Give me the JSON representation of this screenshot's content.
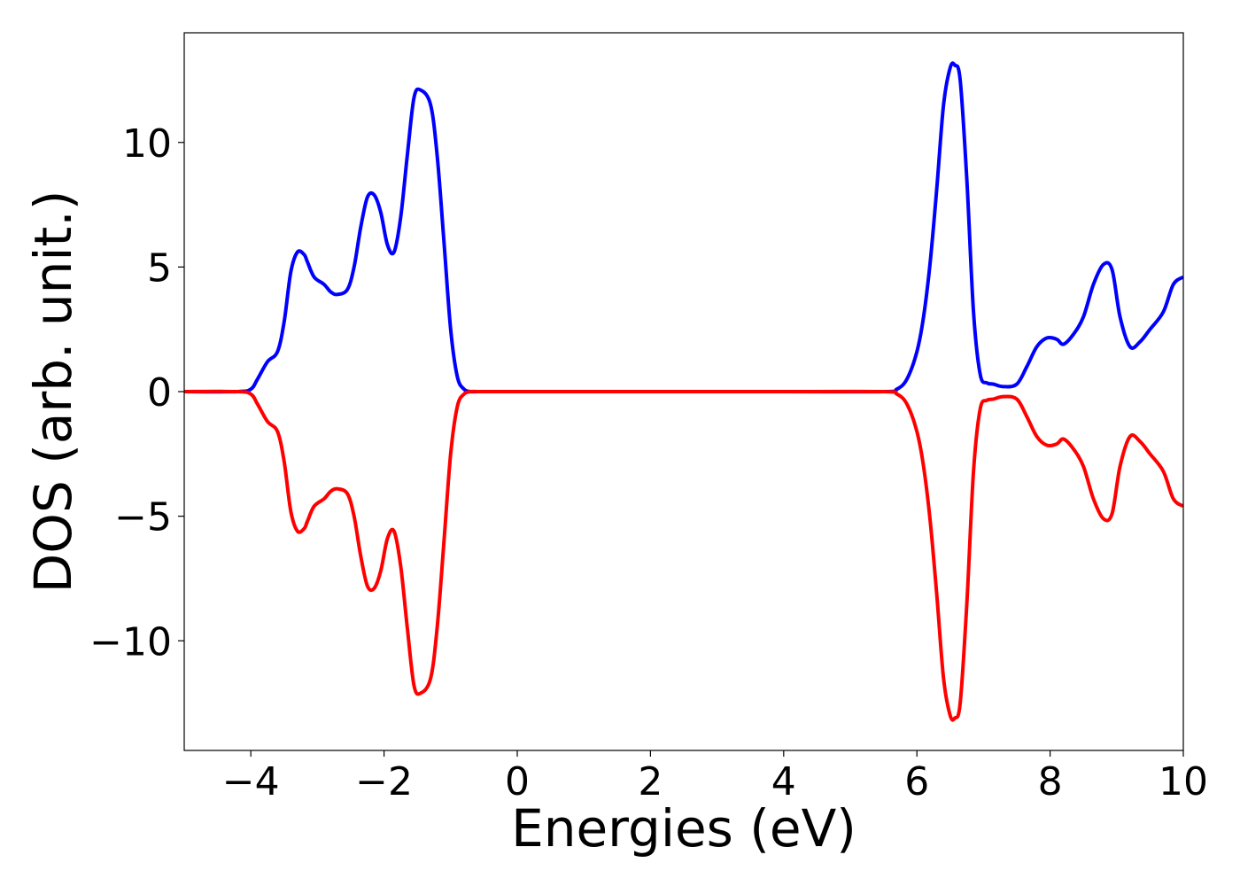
{
  "chart_data": {
    "type": "line",
    "title": "",
    "xlabel": "Energies (eV)",
    "ylabel": "DOS (arb. unit.)",
    "xlim": [
      -5,
      10
    ],
    "ylim": [
      -14.4,
      14.4
    ],
    "xticks": [
      -4,
      -2,
      0,
      2,
      4,
      6,
      8,
      10
    ],
    "xtick_labels": [
      "−4",
      "−2",
      "0",
      "2",
      "4",
      "6",
      "8",
      "10"
    ],
    "yticks": [
      10,
      5,
      0,
      -5,
      -10
    ],
    "ytick_labels": [
      "10",
      "5",
      "0",
      "−5",
      "−10"
    ],
    "grid": false,
    "legend": false,
    "series": [
      {
        "color": "#0000ff",
        "x": [
          -5,
          -4.2,
          -4.0,
          -3.9,
          -3.75,
          -3.6,
          -3.5,
          -3.4,
          -3.3,
          -3.2,
          -3.15,
          -3.05,
          -2.9,
          -2.8,
          -2.7,
          -2.55,
          -2.45,
          -2.35,
          -2.25,
          -2.15,
          -2.05,
          -1.95,
          -1.85,
          -1.75,
          -1.65,
          -1.55,
          -1.45,
          -1.3,
          -1.2,
          -1.1,
          -1.0,
          -0.9,
          -0.8,
          -0.7,
          -0.6,
          -0.5,
          -0.4,
          0,
          4,
          5.5,
          5.7,
          5.85,
          6.0,
          6.1,
          6.2,
          6.3,
          6.4,
          6.5,
          6.57,
          6.65,
          6.75,
          6.85,
          6.95,
          7.05,
          7.15,
          7.3,
          7.5,
          7.65,
          7.8,
          7.95,
          8.1,
          8.2,
          8.35,
          8.5,
          8.65,
          8.8,
          8.93,
          9.05,
          9.2,
          9.35,
          9.5,
          9.7,
          9.85,
          10
        ],
        "y": [
          0,
          0,
          0.1,
          0.5,
          1.2,
          1.6,
          2.8,
          4.8,
          5.6,
          5.5,
          5.2,
          4.6,
          4.3,
          4.0,
          3.9,
          4.1,
          5.0,
          6.6,
          7.8,
          7.9,
          7.2,
          5.9,
          5.6,
          7.0,
          9.5,
          11.8,
          12.1,
          11.5,
          9.4,
          6.0,
          2.5,
          0.6,
          0.1,
          0,
          0,
          0,
          0,
          0,
          0,
          0,
          0.1,
          0.5,
          1.6,
          3.0,
          5.2,
          8.2,
          11.5,
          13.0,
          13.1,
          12.5,
          8.5,
          3.2,
          0.7,
          0.35,
          0.3,
          0.2,
          0.3,
          1.0,
          1.8,
          2.15,
          2.1,
          1.9,
          2.3,
          3.0,
          4.3,
          5.1,
          4.9,
          3.0,
          1.8,
          2.0,
          2.5,
          3.2,
          4.3,
          4.6
        ]
      },
      {
        "color": "#ff0000",
        "x": [
          -5,
          -4.2,
          -4.0,
          -3.9,
          -3.75,
          -3.6,
          -3.5,
          -3.4,
          -3.3,
          -3.2,
          -3.15,
          -3.05,
          -2.9,
          -2.8,
          -2.7,
          -2.55,
          -2.45,
          -2.35,
          -2.25,
          -2.15,
          -2.05,
          -1.95,
          -1.85,
          -1.75,
          -1.65,
          -1.55,
          -1.45,
          -1.3,
          -1.2,
          -1.1,
          -1.0,
          -0.9,
          -0.8,
          -0.7,
          -0.6,
          -0.5,
          -0.4,
          0,
          4,
          5.5,
          5.7,
          5.85,
          6.0,
          6.1,
          6.2,
          6.3,
          6.4,
          6.5,
          6.57,
          6.65,
          6.75,
          6.85,
          6.95,
          7.05,
          7.15,
          7.3,
          7.5,
          7.65,
          7.8,
          7.95,
          8.1,
          8.2,
          8.35,
          8.5,
          8.65,
          8.8,
          8.93,
          9.05,
          9.2,
          9.35,
          9.5,
          9.7,
          9.85,
          10
        ],
        "y": [
          0,
          0,
          -0.1,
          -0.5,
          -1.2,
          -1.6,
          -2.8,
          -4.8,
          -5.6,
          -5.5,
          -5.2,
          -4.6,
          -4.3,
          -4.0,
          -3.9,
          -4.1,
          -5.0,
          -6.6,
          -7.8,
          -7.9,
          -7.2,
          -5.9,
          -5.6,
          -7.0,
          -9.5,
          -11.8,
          -12.1,
          -11.5,
          -9.4,
          -6.0,
          -2.5,
          -0.6,
          -0.1,
          0,
          0,
          0,
          0,
          0,
          0,
          0,
          -0.1,
          -0.5,
          -1.6,
          -3.0,
          -5.2,
          -8.2,
          -11.5,
          -13.0,
          -13.1,
          -12.5,
          -8.5,
          -3.2,
          -0.7,
          -0.35,
          -0.3,
          -0.2,
          -0.3,
          -1.0,
          -1.8,
          -2.15,
          -2.1,
          -1.9,
          -2.3,
          -3.0,
          -4.3,
          -5.1,
          -4.9,
          -3.0,
          -1.8,
          -2.0,
          -2.5,
          -3.2,
          -4.3,
          -4.6
        ]
      }
    ]
  }
}
